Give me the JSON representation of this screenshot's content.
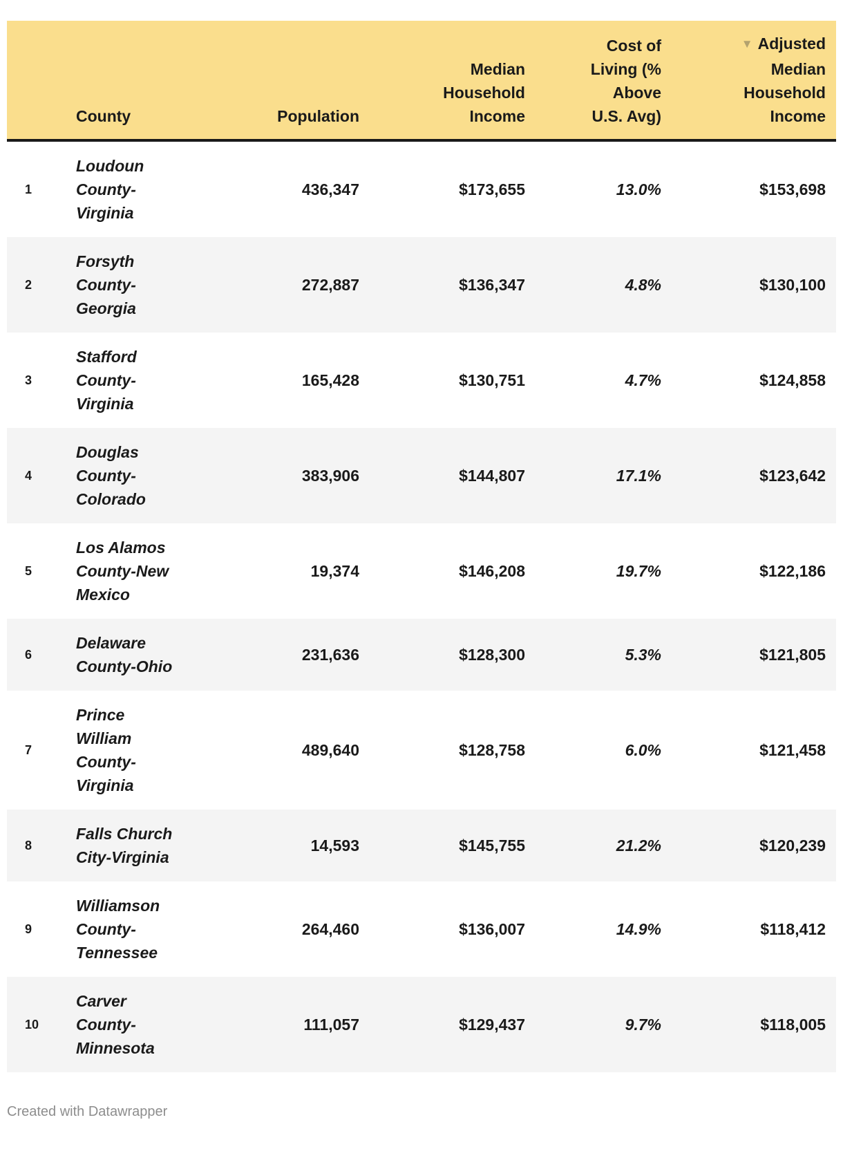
{
  "chart_data": {
    "type": "table",
    "columns": [
      "County",
      "Population",
      "Median Household Income",
      "Cost of Living (% Above U.S. Avg)",
      "Adjusted Median Household Income"
    ],
    "sort": {
      "column": "Adjusted Median Household Income",
      "direction": "descending"
    },
    "rows": [
      {
        "rank": 1,
        "county": "Loudoun County-Virginia",
        "population": 436347,
        "median_household_income": 173655,
        "cost_of_living_pct_above_us_avg": 13.0,
        "adjusted_median_household_income": 153698
      },
      {
        "rank": 2,
        "county": "Forsyth County-Georgia",
        "population": 272887,
        "median_household_income": 136347,
        "cost_of_living_pct_above_us_avg": 4.8,
        "adjusted_median_household_income": 130100
      },
      {
        "rank": 3,
        "county": "Stafford County-Virginia",
        "population": 165428,
        "median_household_income": 130751,
        "cost_of_living_pct_above_us_avg": 4.7,
        "adjusted_median_household_income": 124858
      },
      {
        "rank": 4,
        "county": "Douglas County-Colorado",
        "population": 383906,
        "median_household_income": 144807,
        "cost_of_living_pct_above_us_avg": 17.1,
        "adjusted_median_household_income": 123642
      },
      {
        "rank": 5,
        "county": "Los Alamos County-New Mexico",
        "population": 19374,
        "median_household_income": 146208,
        "cost_of_living_pct_above_us_avg": 19.7,
        "adjusted_median_household_income": 122186
      },
      {
        "rank": 6,
        "county": "Delaware County-Ohio",
        "population": 231636,
        "median_household_income": 128300,
        "cost_of_living_pct_above_us_avg": 5.3,
        "adjusted_median_household_income": 121805
      },
      {
        "rank": 7,
        "county": "Prince William County-Virginia",
        "population": 489640,
        "median_household_income": 128758,
        "cost_of_living_pct_above_us_avg": 6.0,
        "adjusted_median_household_income": 121458
      },
      {
        "rank": 8,
        "county": "Falls Church City-Virginia",
        "population": 14593,
        "median_household_income": 145755,
        "cost_of_living_pct_above_us_avg": 21.2,
        "adjusted_median_household_income": 120239
      },
      {
        "rank": 9,
        "county": "Williamson County-Tennessee",
        "population": 264460,
        "median_household_income": 136007,
        "cost_of_living_pct_above_us_avg": 14.9,
        "adjusted_median_household_income": 118412
      },
      {
        "rank": 10,
        "county": "Carver County-Minnesota",
        "population": 111057,
        "median_household_income": 129437,
        "cost_of_living_pct_above_us_avg": 9.7,
        "adjusted_median_household_income": 118005
      }
    ]
  },
  "table": {
    "header": {
      "county": "County",
      "population": "Population",
      "median_income": "Median\nHousehold\nIncome",
      "cost_of_living": "Cost of\nLiving (%\nAbove\nU.S. Avg)",
      "adjusted_income": "Adjusted\nMedian\nHousehold\nIncome",
      "sort_icon": "▼"
    },
    "rows": [
      {
        "rank": "1",
        "county": "Loudoun County-Virginia",
        "population": "436,347",
        "median_income": "$173,655",
        "cost_of_living": "13.0%",
        "adjusted_income": "$153,698"
      },
      {
        "rank": "2",
        "county": "Forsyth County-Georgia",
        "population": "272,887",
        "median_income": "$136,347",
        "cost_of_living": "4.8%",
        "adjusted_income": "$130,100"
      },
      {
        "rank": "3",
        "county": "Stafford County-Virginia",
        "population": "165,428",
        "median_income": "$130,751",
        "cost_of_living": "4.7%",
        "adjusted_income": "$124,858"
      },
      {
        "rank": "4",
        "county": "Douglas County-Colorado",
        "population": "383,906",
        "median_income": "$144,807",
        "cost_of_living": "17.1%",
        "adjusted_income": "$123,642"
      },
      {
        "rank": "5",
        "county": "Los Alamos County-New Mexico",
        "population": "19,374",
        "median_income": "$146,208",
        "cost_of_living": "19.7%",
        "adjusted_income": "$122,186"
      },
      {
        "rank": "6",
        "county": "Delaware County-Ohio",
        "population": "231,636",
        "median_income": "$128,300",
        "cost_of_living": "5.3%",
        "adjusted_income": "$121,805"
      },
      {
        "rank": "7",
        "county": "Prince William County-Virginia",
        "population": "489,640",
        "median_income": "$128,758",
        "cost_of_living": "6.0%",
        "adjusted_income": "$121,458"
      },
      {
        "rank": "8",
        "county": "Falls Church City-Virginia",
        "population": "14,593",
        "median_income": "$145,755",
        "cost_of_living": "21.2%",
        "adjusted_income": "$120,239"
      },
      {
        "rank": "9",
        "county": "Williamson County-Tennessee",
        "population": "264,460",
        "median_income": "$136,007",
        "cost_of_living": "14.9%",
        "adjusted_income": "$118,412"
      },
      {
        "rank": "10",
        "county": "Carver County-Minnesota",
        "population": "111,057",
        "median_income": "$129,437",
        "cost_of_living": "9.7%",
        "adjusted_income": "$118,005"
      }
    ]
  },
  "footer": {
    "credit": "Created with Datawrapper"
  },
  "colors": {
    "header_bg": "#FADE8D",
    "header_border": "#1A1A1A",
    "row_alt_bg": "#F4F4F4",
    "text": "#1A1A1A",
    "sort_arrow": "#B3A26E",
    "credit_text": "#8D8D8D"
  }
}
